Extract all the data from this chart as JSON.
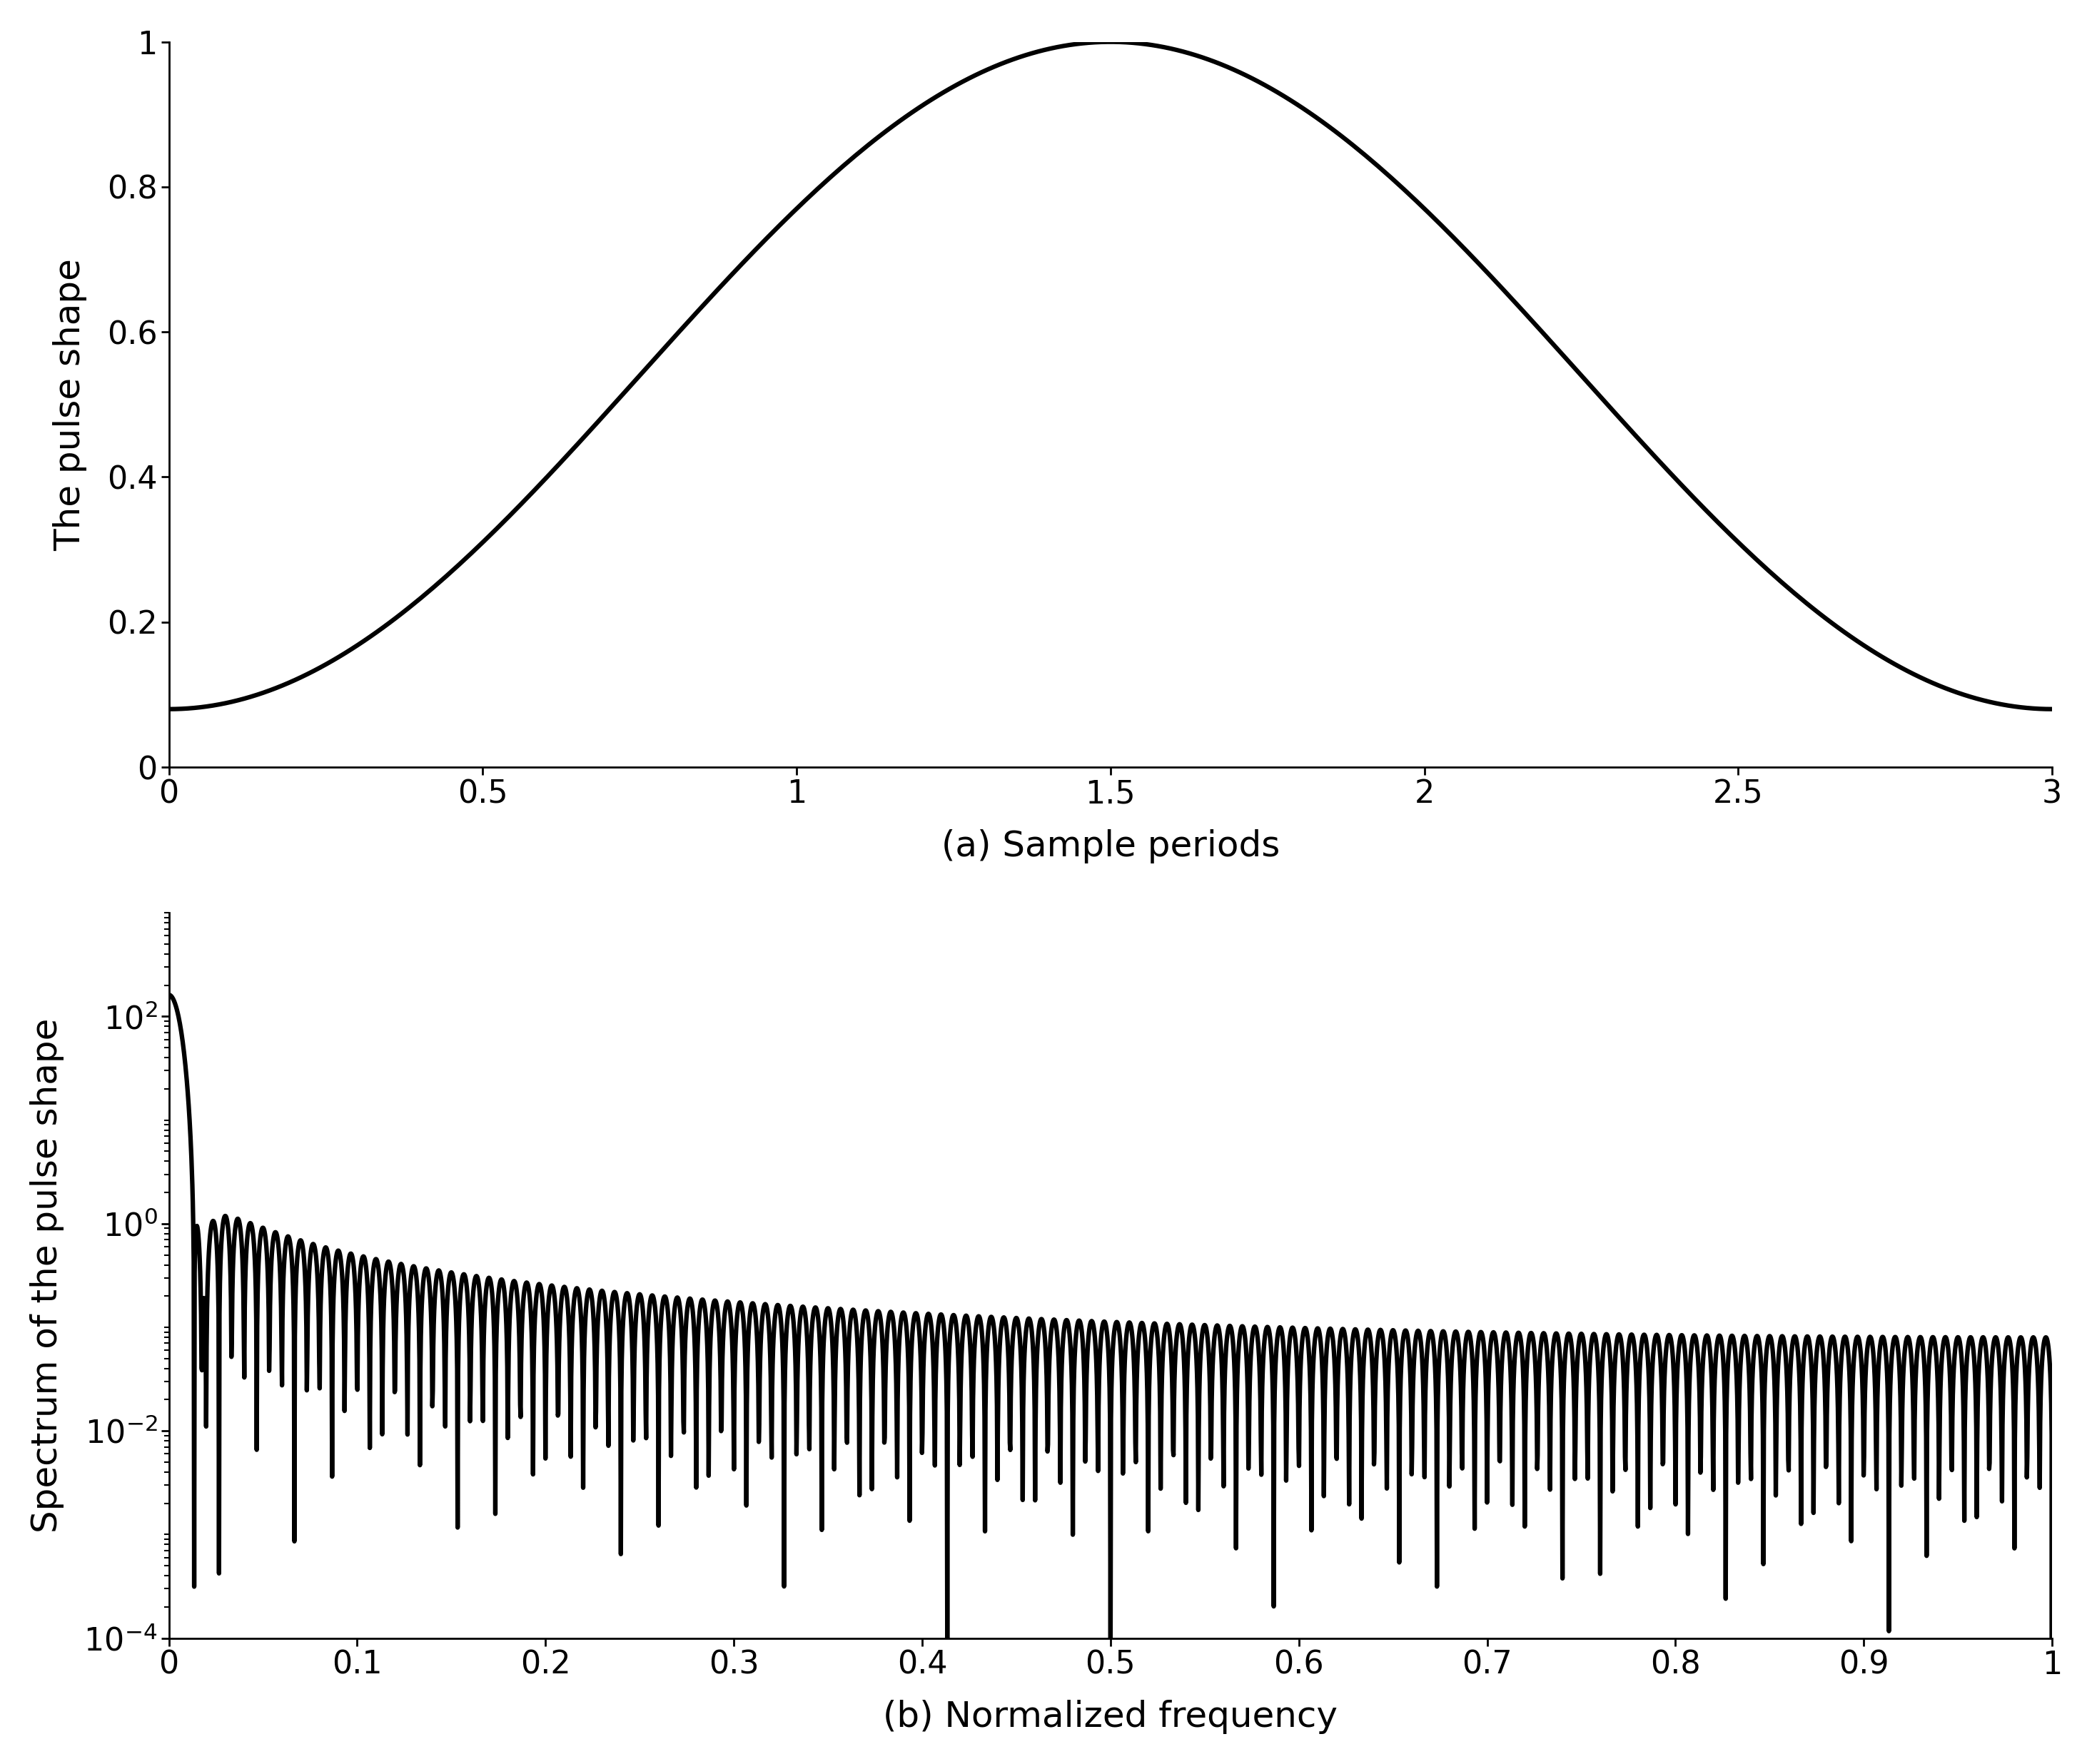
{
  "title_a": "(a) Sample periods",
  "title_b": "(b) Normalized frequency",
  "ylabel_a": "The pulse shape",
  "ylabel_b": "Spectrum of the pulse shape",
  "xlim_a": [
    0,
    3
  ],
  "ylim_a": [
    0,
    1
  ],
  "xlim_b": [
    0,
    1
  ],
  "ylim_b": [
    0.0001,
    1000.0
  ],
  "xticks_a": [
    0,
    0.5,
    1,
    1.5,
    2,
    2.5,
    3
  ],
  "xtick_labels_a": [
    "0",
    "0.5",
    "1",
    "1.5",
    "2",
    "2.5",
    "3"
  ],
  "yticks_a": [
    0,
    0.2,
    0.4,
    0.6,
    0.8,
    1
  ],
  "ytick_labels_a": [
    "0",
    "0.2",
    "0.4",
    "0.6",
    "0.8",
    "1"
  ],
  "xticks_b": [
    0,
    0.1,
    0.2,
    0.3,
    0.4,
    0.5,
    0.6,
    0.7,
    0.8,
    0.9,
    1
  ],
  "xtick_labels_b": [
    "0",
    "0.1",
    "0.2",
    "0.3",
    "0.4",
    "0.5",
    "0.6",
    "0.7",
    "0.8",
    "0.9",
    "1"
  ],
  "line_color": "#000000",
  "line_width": 4.5,
  "background_color": "#ffffff",
  "font_size_title": 36,
  "font_size_tick": 32,
  "font_size_label": 36,
  "N_hamming": 300,
  "Nfft": 8192
}
